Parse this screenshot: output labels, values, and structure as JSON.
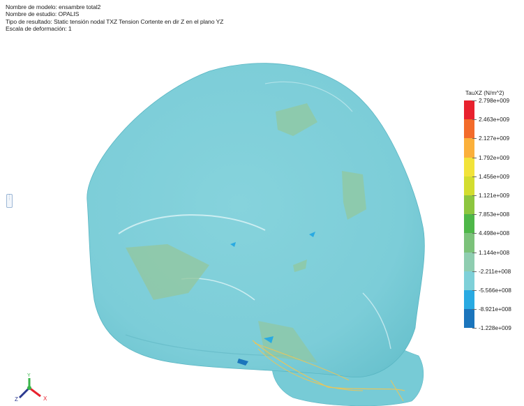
{
  "header": {
    "model_line": "Nombre de modelo: ensambre total2",
    "study_line": "Nombre de estudio: OPALIS",
    "result_line": "Tipo de resultado: Static tensión nodal TXZ Tension Cortente en dir Z en el plano YZ",
    "scale_line": "Escala de deformación: 1"
  },
  "legend": {
    "title": "TauXZ (N/m^2)",
    "entries": [
      {
        "label": "2.798e+009",
        "color": "#e8212e"
      },
      {
        "label": "2.463e+009",
        "color": "#f36b2a"
      },
      {
        "label": "2.127e+009",
        "color": "#fbb03b"
      },
      {
        "label": "1.792e+009",
        "color": "#f2e33a"
      },
      {
        "label": "1.456e+009",
        "color": "#d3dd2f"
      },
      {
        "label": "1.121e+009",
        "color": "#8dc63f"
      },
      {
        "label": "7.853e+008",
        "color": "#4eb748"
      },
      {
        "label": "4.498e+008",
        "color": "#7cc27a"
      },
      {
        "label": "1.144e+008",
        "color": "#8fcdb0"
      },
      {
        "label": "-2.211e+008",
        "color": "#7ed0d8"
      },
      {
        "label": "-5.566e+008",
        "color": "#29aae2"
      },
      {
        "label": "-8.921e+008",
        "color": "#1b75bc"
      },
      {
        "label": "-1.228e+009",
        "color": "#2b3990"
      }
    ]
  },
  "model": {
    "base_color": "#7ecfd9",
    "highlight_color": "#d8f2f5",
    "outline_color": "#e8c55b"
  },
  "triad": {
    "x_label": "X",
    "y_label": "Y",
    "z_label": "Z"
  }
}
